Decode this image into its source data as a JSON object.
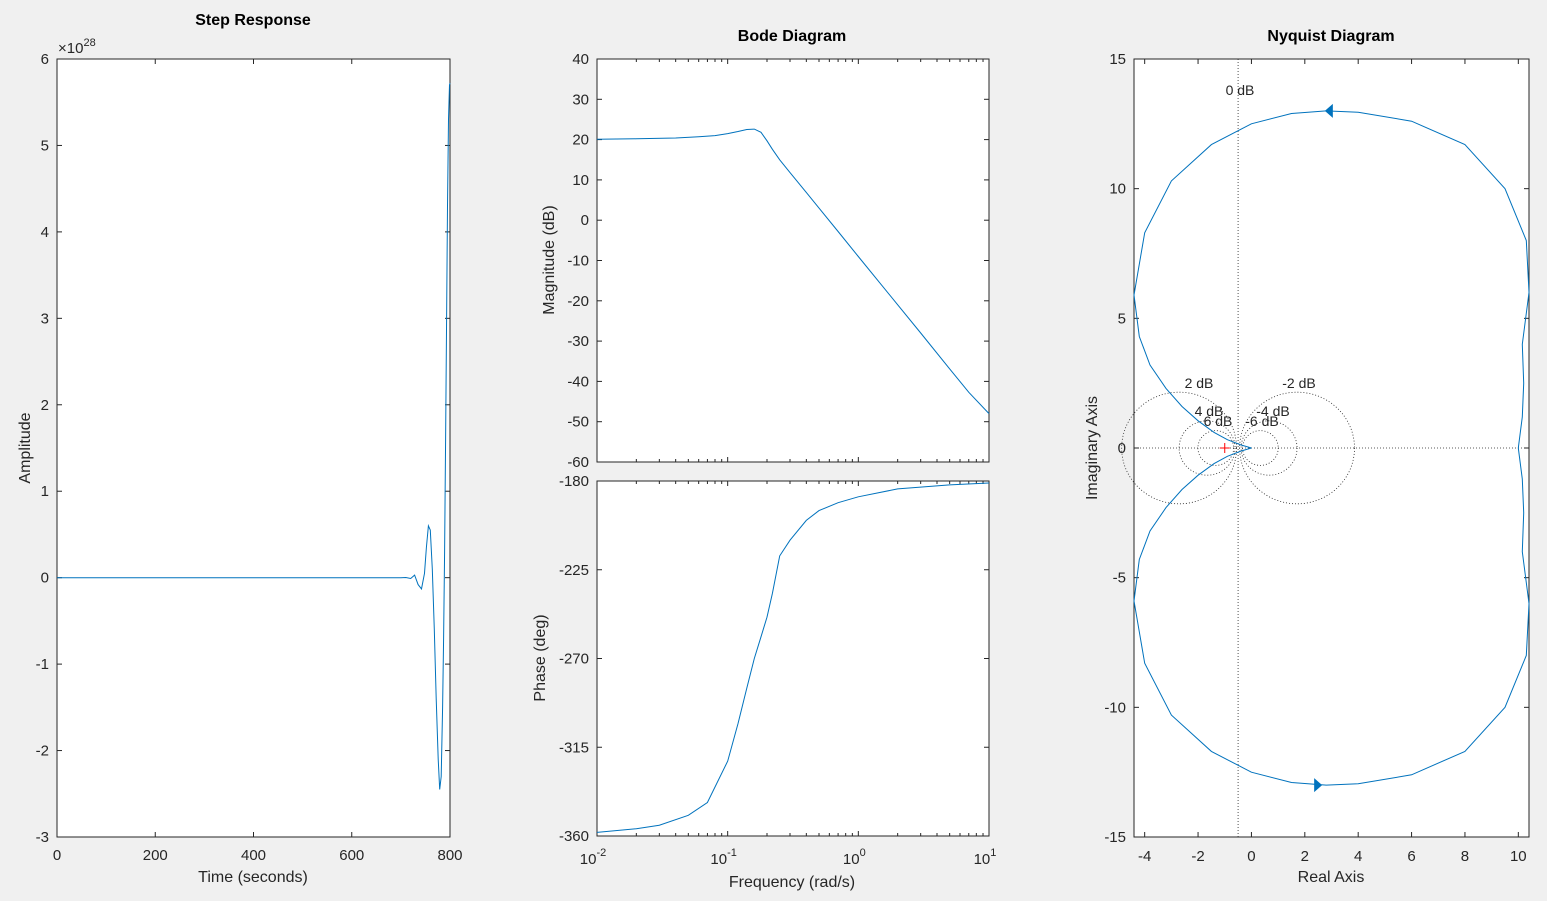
{
  "figure": {
    "background": "#f0f0f0",
    "line_color": "#0072bd",
    "axis_color": "#262626",
    "critical_point_color": "#ff0000"
  },
  "chart_data": [
    {
      "id": "step",
      "type": "line",
      "title": "Step Response",
      "xlabel": "Time (seconds)",
      "ylabel": "Amplitude",
      "xlim": [
        0,
        800
      ],
      "ylim": [
        -3,
        6
      ],
      "y_multiplier": "×10",
      "y_exponent": "28",
      "xticks": [
        "0",
        "200",
        "400",
        "600",
        "800"
      ],
      "yticks": [
        "-3",
        "-2",
        "-1",
        "0",
        "1",
        "2",
        "3",
        "4",
        "5",
        "6"
      ],
      "series": [
        {
          "x": [
            0,
            600,
            700,
            710,
            720,
            728,
            735,
            742,
            748,
            752,
            756,
            760,
            764,
            768,
            772,
            776,
            779,
            782,
            785,
            787,
            789,
            791,
            793,
            795,
            797,
            799,
            800
          ],
          "y": [
            0,
            0,
            0,
            0.002,
            -0.01,
            0.03,
            -0.08,
            -0.13,
            0.05,
            0.35,
            0.6,
            0.55,
            0.1,
            -0.6,
            -1.4,
            -2.1,
            -2.45,
            -2.3,
            -1.5,
            -0.7,
            0.3,
            1.6,
            3.0,
            4.3,
            5.3,
            5.7,
            5.72
          ]
        }
      ]
    },
    {
      "id": "bode-mag",
      "type": "line",
      "title": "Bode Diagram",
      "xlabel": "",
      "ylabel": "Magnitude (dB)",
      "xscale": "log",
      "xlim": [
        0.01,
        10
      ],
      "ylim": [
        -60,
        40
      ],
      "yticks": [
        "-60",
        "-50",
        "-40",
        "-30",
        "-20",
        "-10",
        "0",
        "10",
        "20",
        "30",
        "40"
      ],
      "series": [
        {
          "x": [
            0.01,
            0.02,
            0.04,
            0.06,
            0.08,
            0.1,
            0.12,
            0.14,
            0.16,
            0.18,
            0.2,
            0.22,
            0.25,
            0.3,
            0.4,
            0.5,
            0.7,
            1,
            2,
            3,
            5,
            7,
            10
          ],
          "y": [
            20.1,
            20.2,
            20.4,
            20.7,
            21.0,
            21.5,
            22.0,
            22.5,
            22.6,
            21.8,
            19.7,
            17.6,
            15.0,
            11.8,
            6.9,
            3.0,
            -2.8,
            -9.0,
            -21.0,
            -28.0,
            -36.9,
            -42.7,
            -48.0
          ]
        }
      ]
    },
    {
      "id": "bode-phase",
      "type": "line",
      "xlabel": "Frequency  (rad/s)",
      "ylabel": "Phase (deg)",
      "xscale": "log",
      "xlim": [
        0.01,
        10
      ],
      "ylim": [
        -360,
        -180
      ],
      "xticks": [
        {
          "base": "10",
          "exp": "-2"
        },
        {
          "base": "10",
          "exp": "-1"
        },
        {
          "base": "10",
          "exp": "0"
        },
        {
          "base": "10",
          "exp": "1"
        }
      ],
      "yticks": [
        "-360",
        "-315",
        "-270",
        "-225",
        "-180"
      ],
      "series": [
        {
          "x": [
            0.01,
            0.02,
            0.03,
            0.05,
            0.07,
            0.1,
            0.12,
            0.14,
            0.16,
            0.18,
            0.2,
            0.22,
            0.25,
            0.3,
            0.4,
            0.5,
            0.7,
            1,
            2,
            5,
            10
          ],
          "y": [
            -358.2,
            -356.3,
            -354.5,
            -349.5,
            -343,
            -322,
            -303,
            -285,
            -270,
            -259,
            -249,
            -237,
            -218,
            -210,
            -200,
            -195,
            -191,
            -188,
            -184,
            -182,
            -181
          ]
        }
      ]
    },
    {
      "id": "nyquist",
      "type": "line",
      "title": "Nyquist Diagram",
      "xlabel": "Real Axis",
      "ylabel": "Imaginary Axis",
      "xlim": [
        -4.4,
        10.4
      ],
      "ylim": [
        -15,
        15
      ],
      "xticks": [
        "-4",
        "-2",
        "0",
        "2",
        "4",
        "6",
        "8",
        "10"
      ],
      "yticks": [
        "-15",
        "-10",
        "-5",
        "0",
        "5",
        "10",
        "15"
      ],
      "critical_point": [
        -1,
        0
      ],
      "mcircle_labels": [
        "0 dB",
        "2 dB",
        "-2 dB",
        "4 dB",
        "-4 dB",
        "6 dB",
        "-6 dB"
      ],
      "mcircle_db": [
        2,
        -2,
        4,
        -4,
        6,
        -6
      ],
      "series": [
        {
          "x": [
            10,
            10.15,
            10.2,
            10.15,
            10.4,
            10.3,
            9.5,
            8,
            6,
            4,
            2.8,
            1.5,
            0,
            -1.5,
            -3,
            -4,
            -4.4,
            -4.2,
            -3.8,
            -3.2,
            -2.6,
            -2,
            -1.4,
            -0.9,
            -0.4,
            0
          ],
          "y": [
            0,
            1.2,
            2.5,
            4,
            6,
            8,
            10,
            11.7,
            12.6,
            12.95,
            13,
            12.9,
            12.5,
            11.7,
            10.3,
            8.3,
            5.9,
            4.3,
            3.2,
            2.3,
            1.6,
            1.05,
            0.6,
            0.32,
            0.12,
            0
          ]
        }
      ]
    }
  ]
}
